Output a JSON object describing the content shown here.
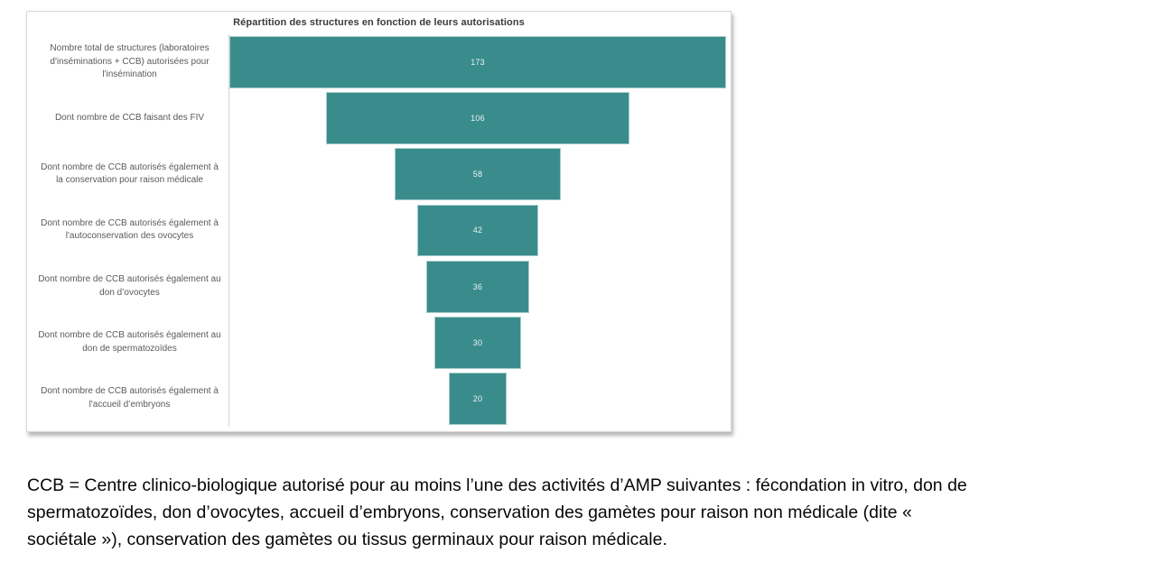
{
  "chart_data": {
    "type": "bar",
    "variant": "horizontal-centered-funnel",
    "title": "Répartition des structures en fonction de leurs autorisations",
    "categories": [
      "Nombre total de structures (laboratoires d'inséminations + CCB) autorisées pour l'insémination",
      "Dont nombre de CCB faisant des FIV",
      "Dont nombre de CCB autorisés également à la conservation pour raison médicale",
      "Dont nombre de CCB autorisés également à l'autoconservation des ovocytes",
      "Dont nombre de CCB autorisés également au don d’ovocytes",
      "Dont nombre de CCB autorisés également au don de spermatozoïdes",
      "Dont nombre de CCB autorisés également à l'accueil d’embryons"
    ],
    "values": [
      173,
      106,
      58,
      42,
      36,
      30,
      20
    ],
    "xlim": [
      0,
      173
    ],
    "grid": false,
    "legend": "none",
    "bar_color": "#3A8C8C",
    "value_label_color": "#E9F3F2",
    "category_label_color": "#5A5A5A",
    "axis_line_color": "#D4D4D4"
  },
  "footnote": {
    "text": "CCB = Centre clinico-biologique autorisé pour au moins l’une des activités d’AMP suivantes : fécondation in vitro, don de spermatozoïdes, don d’ovocytes, accueil d’embryons, conservation des gamètes pour raison non médicale (dite « sociétale »), conservation des gamètes ou tissus germinaux pour raison médicale.",
    "lines": [
      "CCB = Centre clinico-biologique autorisé pour au moins l’une des activités d’AMP suivantes : fécondation in vitro, don de",
      "spermatozoïdes, don d’ovocytes, accueil d’embryons, conservation des gamètes pour raison non médicale (dite «",
      "sociétale »), conservation des gamètes ou tissus germinaux pour raison médicale."
    ]
  }
}
